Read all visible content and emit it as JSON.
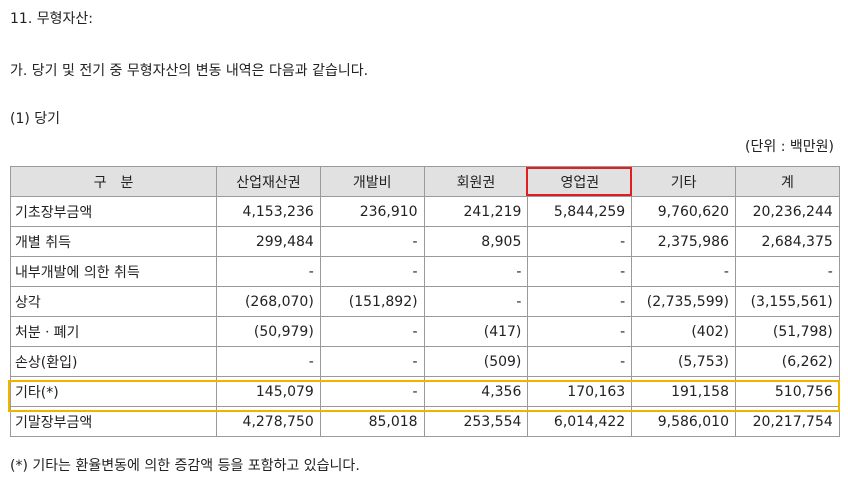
{
  "header": {
    "title": "11. 무형자산:",
    "subtitle": "가. 당기 및 전기 중 무형자산의 변동 내역은 다음과 같습니다.",
    "section": "(1) 당기",
    "unit": "(단위 : 백만원)"
  },
  "table": {
    "columns": [
      "구　분",
      "산업재산권",
      "개발비",
      "회원권",
      "영업권",
      "기타",
      "계"
    ],
    "rows": [
      {
        "label": "기초장부금액",
        "cells": [
          "4,153,236",
          "236,910",
          "241,219",
          "5,844,259",
          "9,760,620",
          "20,236,244"
        ]
      },
      {
        "label": "개별 취득",
        "cells": [
          "299,484",
          "-",
          "8,905",
          "-",
          "2,375,986",
          "2,684,375"
        ]
      },
      {
        "label": "내부개발에 의한 취득",
        "cells": [
          "-",
          "-",
          "-",
          "-",
          "-",
          "-"
        ]
      },
      {
        "label": "상각",
        "cells": [
          "(268,070)",
          "(151,892)",
          "-",
          "-",
          "(2,735,599)",
          "(3,155,561)"
        ]
      },
      {
        "label": "처분ㆍ폐기",
        "cells": [
          "(50,979)",
          "-",
          "(417)",
          "-",
          "(402)",
          "(51,798)"
        ]
      },
      {
        "label": "손상(환입)",
        "cells": [
          "-",
          "-",
          "(509)",
          "-",
          "(5,753)",
          "(6,262)"
        ]
      },
      {
        "label": "기타(*)",
        "cells": [
          "145,079",
          "-",
          "4,356",
          "170,163",
          "191,158",
          "510,756"
        ]
      },
      {
        "label": "기말장부금액",
        "cells": [
          "4,278,750",
          "85,018",
          "253,554",
          "6,014,422",
          "9,586,010",
          "20,217,754"
        ]
      }
    ]
  },
  "footnote": "(*) 기타는 환율변동에 의한 증감액 등을 포함하고 있습니다.",
  "highlights": {
    "column_box_color": "#e02020",
    "row_box_color": "#f0b400"
  }
}
